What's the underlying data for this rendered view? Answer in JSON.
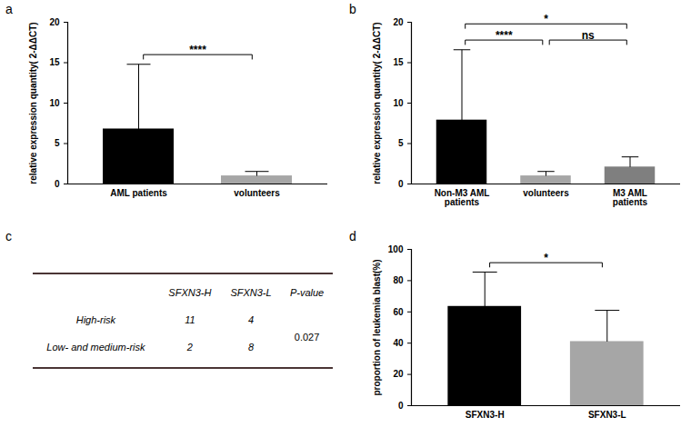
{
  "chart_data": [
    {
      "panel": "a",
      "type": "bar",
      "categories": [
        "AML patients",
        "volunteers"
      ],
      "values": [
        6.8,
        1.0
      ],
      "errors": [
        8.0,
        0.55
      ],
      "colors": [
        "#000000",
        "#a6a6a6"
      ],
      "ylabel": "relative expression quantity( 2-ΔΔCT)",
      "ylim": [
        0,
        20
      ],
      "yticks": [
        0,
        5,
        10,
        15,
        20
      ],
      "significance": [
        {
          "from": 0,
          "to": 1,
          "label": "****"
        }
      ]
    },
    {
      "panel": "b",
      "type": "bar",
      "categories": [
        "Non-M3 AML patients",
        "volunteers",
        "M3 AML patients"
      ],
      "values": [
        7.9,
        1.0,
        2.1
      ],
      "errors": [
        8.7,
        0.55,
        1.25
      ],
      "colors": [
        "#000000",
        "#a6a6a6",
        "#7f7f7f"
      ],
      "ylabel": "relative expression quantity( 2-ΔΔCT)",
      "ylim": [
        0,
        20
      ],
      "yticks": [
        0,
        5,
        10,
        15,
        20
      ],
      "significance": [
        {
          "from": 0,
          "to": 1,
          "label": "****"
        },
        {
          "from": 1,
          "to": 2,
          "label": "ns"
        },
        {
          "from": 0,
          "to": 2,
          "label": "*"
        }
      ]
    },
    {
      "panel": "c",
      "type": "table",
      "columns": [
        "SFXN3-H",
        "SFXN3-L",
        "P-value"
      ],
      "rows": [
        {
          "label": "High-risk",
          "values": [
            11,
            4
          ]
        },
        {
          "label": "Low- and medium-risk",
          "values": [
            2,
            8
          ]
        }
      ],
      "p_value": 0.027
    },
    {
      "panel": "d",
      "type": "bar",
      "categories": [
        "SFXN3-H",
        "SFXN3-L"
      ],
      "values": [
        63.5,
        41
      ],
      "errors": [
        22,
        20
      ],
      "colors": [
        "#000000",
        "#a6a6a6"
      ],
      "ylabel": "proportion of leukemia blast(%)",
      "ylim": [
        0,
        100
      ],
      "yticks": [
        0,
        20,
        40,
        60,
        80,
        100
      ],
      "significance": [
        {
          "from": 0,
          "to": 1,
          "label": "*"
        }
      ]
    }
  ]
}
